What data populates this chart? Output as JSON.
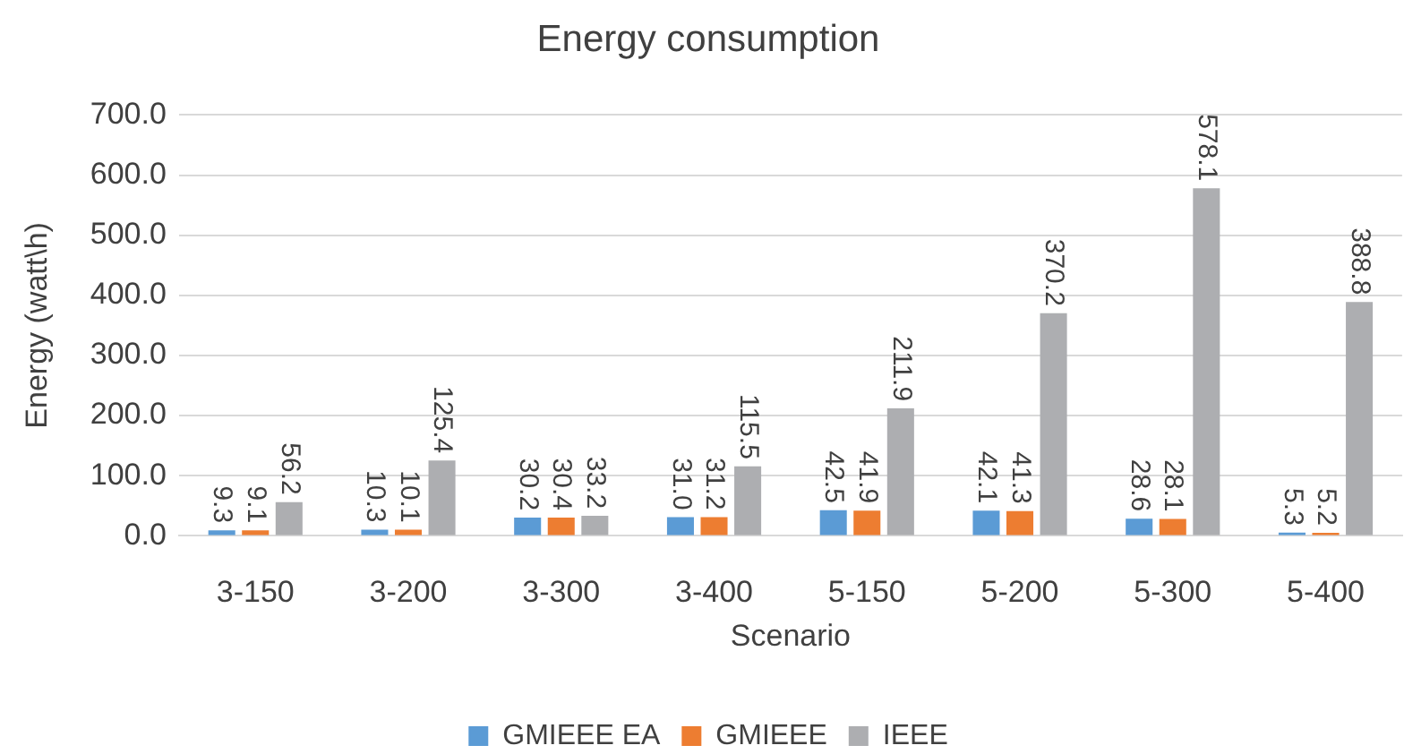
{
  "chart_data": {
    "type": "bar",
    "title": "Energy consumption",
    "xlabel": "Scenario",
    "ylabel": "Energy (watt\\h)",
    "categories": [
      "3-150",
      "3-200",
      "3-300",
      "3-400",
      "5-150",
      "5-200",
      "5-300",
      "5-400"
    ],
    "series": [
      {
        "name": "GMIEEE EA",
        "color": "#5b9bd5",
        "values": [
          9.3,
          10.3,
          30.2,
          31.0,
          42.5,
          42.1,
          28.6,
          5.3
        ],
        "value_labels": [
          "9.3",
          "10.3",
          "30.2",
          "31.0",
          "42.5",
          "42.1",
          "28.6",
          "5.3"
        ]
      },
      {
        "name": "GMIEEE",
        "color": "#ed7d31",
        "values": [
          9.1,
          10.1,
          30.4,
          31.2,
          41.9,
          41.3,
          28.1,
          5.2
        ],
        "value_labels": [
          "9.1",
          "10.1",
          "30.4",
          "31.2",
          "41.9",
          "41.3",
          "28.1",
          "5.2"
        ]
      },
      {
        "name": "IEEE",
        "color": "#adaeb1",
        "values": [
          56.2,
          125.4,
          33.2,
          115.5,
          211.9,
          370.2,
          578.1,
          388.8
        ],
        "value_labels": [
          "56.2",
          "125.4",
          "33.2",
          "115.5",
          "211.9",
          "370.2",
          "578.1",
          "388.8"
        ]
      }
    ],
    "ylim": [
      0,
      700
    ],
    "yticks": [
      {
        "value": 0,
        "label": "0.0"
      },
      {
        "value": 100,
        "label": "100.0"
      },
      {
        "value": 200,
        "label": "200.0"
      },
      {
        "value": 300,
        "label": "300.0"
      },
      {
        "value": 400,
        "label": "400.0"
      },
      {
        "value": 500,
        "label": "500.0"
      },
      {
        "value": 600,
        "label": "600.0"
      },
      {
        "value": 700,
        "label": "700.0"
      }
    ],
    "grid": "y",
    "legend": "bottom"
  }
}
